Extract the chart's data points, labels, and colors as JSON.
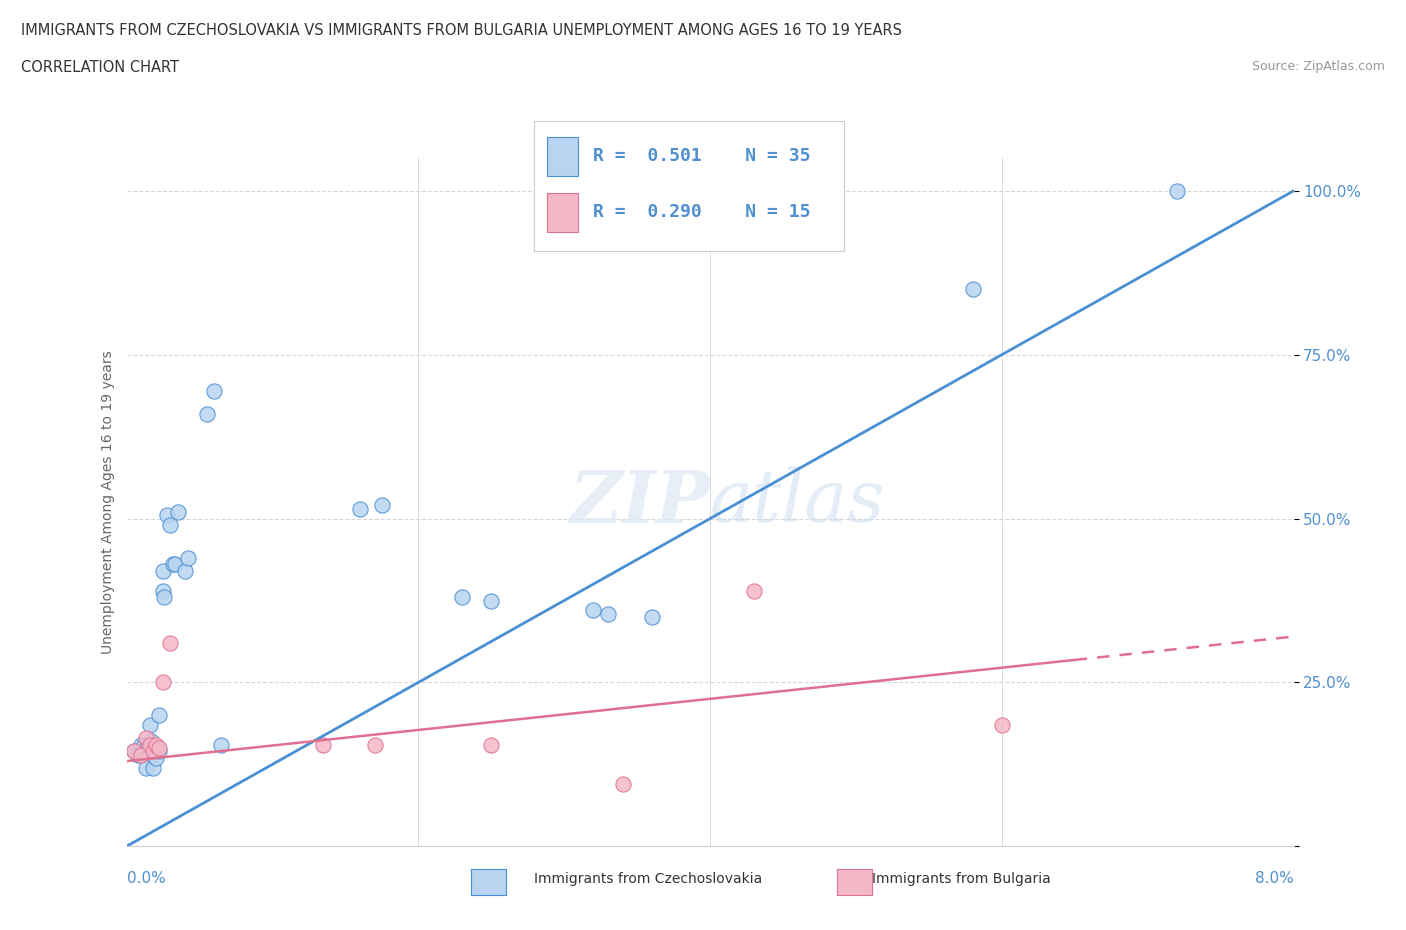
{
  "title_line1": "IMMIGRANTS FROM CZECHOSLOVAKIA VS IMMIGRANTS FROM BULGARIA UNEMPLOYMENT AMONG AGES 16 TO 19 YEARS",
  "title_line2": "CORRELATION CHART",
  "source": "Source: ZipAtlas.com",
  "ylabel": "Unemployment Among Ages 16 to 19 years",
  "watermark_zip": "ZIP",
  "watermark_atlas": "atlas",
  "R_czech": "0.501",
  "N_czech": "35",
  "R_bulg": "0.290",
  "N_bulg": "15",
  "czech_face_color": "#b8d4f0",
  "bulg_face_color": "#f5b8c8",
  "trend_czech_color": "#4a8fd4",
  "trend_bulg_color": "#e07090",
  "grid_color": "#d8d8d8",
  "background_color": "#ffffff",
  "tick_color": "#5090d0",
  "czech_x": [
    0.0005,
    0.0008,
    0.001,
    0.001,
    0.0012,
    0.0013,
    0.0015,
    0.0016,
    0.0017,
    0.0018,
    0.002,
    0.0022,
    0.0022,
    0.0025,
    0.0025,
    0.0026,
    0.0028,
    0.003,
    0.0032,
    0.0033,
    0.0035,
    0.004,
    0.0042,
    0.0055,
    0.006,
    0.0065,
    0.016,
    0.0175,
    0.023,
    0.025,
    0.032,
    0.033,
    0.036,
    0.058,
    0.072
  ],
  "czech_y": [
    0.145,
    0.14,
    0.155,
    0.14,
    0.155,
    0.12,
    0.155,
    0.185,
    0.16,
    0.12,
    0.135,
    0.145,
    0.2,
    0.39,
    0.42,
    0.38,
    0.505,
    0.49,
    0.43,
    0.43,
    0.51,
    0.42,
    0.44,
    0.66,
    0.695,
    0.155,
    0.515,
    0.52,
    0.38,
    0.375,
    0.36,
    0.355,
    0.35,
    0.85,
    1.0
  ],
  "bulg_x": [
    0.0005,
    0.001,
    0.0013,
    0.0016,
    0.0018,
    0.002,
    0.0022,
    0.0025,
    0.003,
    0.0135,
    0.017,
    0.025,
    0.034,
    0.043,
    0.06
  ],
  "bulg_y": [
    0.145,
    0.14,
    0.165,
    0.155,
    0.145,
    0.155,
    0.15,
    0.25,
    0.31,
    0.155,
    0.155,
    0.155,
    0.095,
    0.39,
    0.185
  ],
  "trend_czech_x0": 0.0,
  "trend_czech_y0": 0.0,
  "trend_czech_x1": 0.08,
  "trend_czech_y1": 1.0,
  "trend_bulg_x0": 0.0,
  "trend_bulg_y0": 0.13,
  "trend_bulg_x1": 0.08,
  "trend_bulg_y1": 0.32,
  "xmin": 0.0,
  "xmax": 0.08,
  "ymin": 0.0,
  "ymax": 1.05,
  "ytick_vals": [
    0.0,
    0.25,
    0.5,
    0.75,
    1.0
  ],
  "ytick_labels": [
    "",
    "25.0%",
    "50.0%",
    "75.0%",
    "100.0%"
  ]
}
